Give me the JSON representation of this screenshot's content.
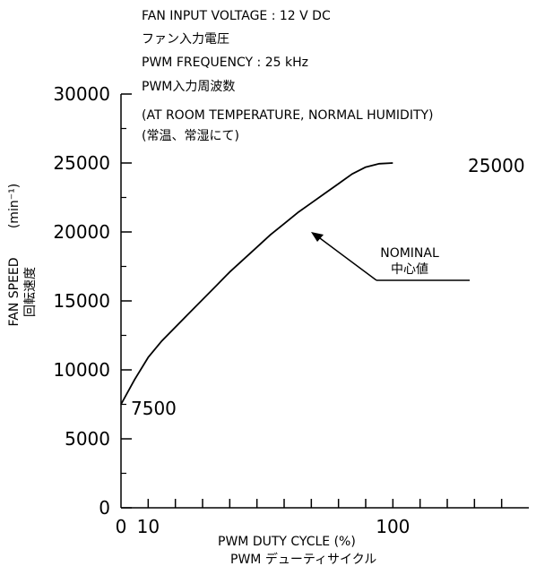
{
  "notes": [
    "FAN INPUT VOLTAGE : 12 V DC",
    "ファン入力電圧",
    "PWM FREQUENCY : 25 kHz",
    "PWM入力周波数",
    "(AT ROOM TEMPERATURE, NORMAL HUMIDITY)",
    "(常温、常湿にて)"
  ],
  "axis_titles": {
    "x_en": "PWM DUTY CYCLE (%)",
    "x_jp": "PWM デューティサイクル",
    "y_en": "FAN SPEED",
    "y_jp": "回転速度",
    "y_unit": "(min⁻¹)"
  },
  "annotation": {
    "en": "NOMINAL",
    "jp": "中心値"
  },
  "end_labels": {
    "start": "7500",
    "end": "25000"
  },
  "chart_data": {
    "type": "line",
    "xlabel": "PWM DUTY CYCLE (%)",
    "ylabel": "FAN SPEED",
    "xlim": [
      0,
      150
    ],
    "ylim": [
      0,
      30000
    ],
    "x_ticks": [
      0,
      10,
      20,
      30,
      40,
      50,
      60,
      70,
      80,
      90,
      100,
      110,
      120,
      130,
      140
    ],
    "x_tick_labels": [
      "0",
      "10",
      "",
      "",
      "",
      "",
      "",
      "",
      "",
      "",
      "100",
      "",
      "",
      "",
      ""
    ],
    "y_ticks": [
      0,
      5000,
      10000,
      15000,
      20000,
      25000,
      30000
    ],
    "y_tick_labels": [
      "0",
      "5000",
      "10000",
      "15000",
      "20000",
      "25000",
      "30000"
    ],
    "minor_y_ticks": [
      2500,
      7500,
      12500,
      17500,
      22500,
      27500
    ],
    "grid": false,
    "series": [
      {
        "x": [
          0,
          5,
          10,
          15,
          20,
          25,
          30,
          35,
          40,
          45,
          50,
          55,
          60,
          65,
          70,
          75,
          80,
          85,
          90,
          95,
          100
        ],
        "y": [
          7500,
          9300,
          10900,
          12100,
          13100,
          14100,
          15100,
          16100,
          17100,
          18000,
          18900,
          19800,
          20600,
          21400,
          22100,
          22800,
          23500,
          24200,
          24700,
          24950,
          25000
        ]
      }
    ],
    "annotations": [
      {
        "text": "NOMINAL 中心値",
        "x": 54,
        "y": 20000
      }
    ]
  }
}
